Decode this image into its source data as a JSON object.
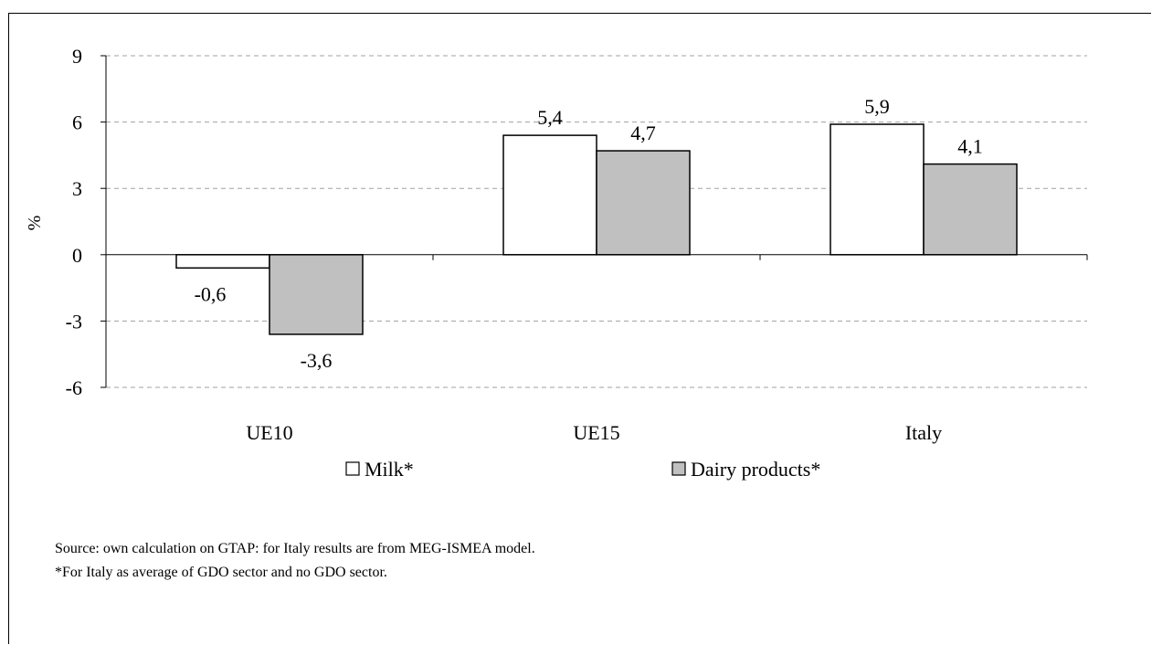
{
  "chart_data": {
    "type": "bar",
    "categories": [
      "UE10",
      "UE15",
      "Italy"
    ],
    "series": [
      {
        "name": "Milk*",
        "values": [
          -0.6,
          5.4,
          5.9
        ],
        "labels": [
          "-0,6",
          "5,4",
          "5,9"
        ],
        "color": "#ffffff"
      },
      {
        "name": "Dairy products*",
        "values": [
          -3.6,
          4.7,
          4.1
        ],
        "labels": [
          "-3,6",
          "4,7",
          "4,1"
        ],
        "color": "#c0c0c0"
      }
    ],
    "title": "",
    "xlabel": "",
    "ylabel": "%",
    "ylim": [
      -6,
      9
    ],
    "yticks": [
      9,
      6,
      3,
      0,
      -3,
      -6
    ],
    "ytick_labels": [
      "9",
      "6",
      "3",
      "0",
      "-3",
      "-6"
    ],
    "grid": "horizontal dashed",
    "legend": "bottom"
  },
  "notes": {
    "source": "Source: own calculation on GTAP: for Italy results are from MEG-ISMEA model.",
    "footnote": "*For Italy as average of GDO sector and no GDO sector."
  }
}
